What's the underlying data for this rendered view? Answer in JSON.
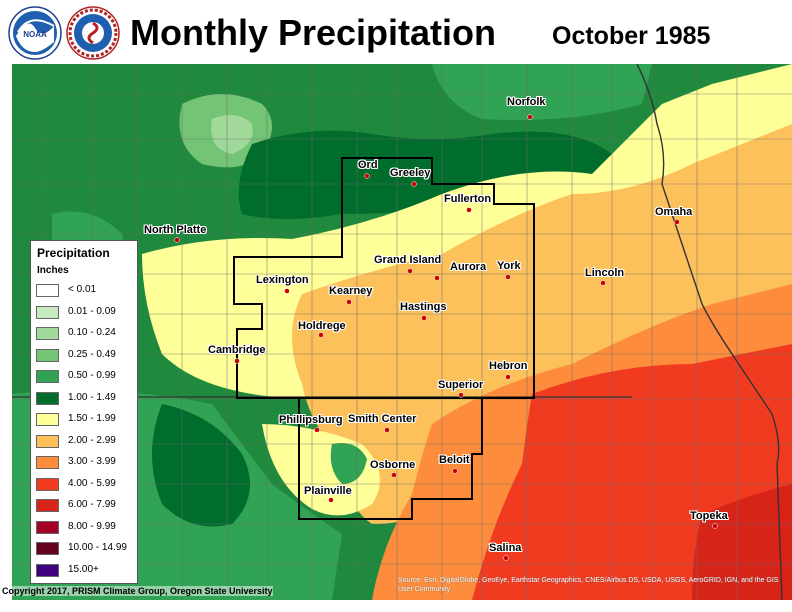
{
  "header": {
    "title": "Monthly Precipitation",
    "subtitle": "October 1985"
  },
  "logos": [
    {
      "icon": "noaa-logo-icon",
      "text": "NOAA"
    },
    {
      "icon": "nws-logo-icon",
      "text": "NATIONAL WEATHER SERVICE"
    }
  ],
  "cities": [
    {
      "name": "Norfolk"
    },
    {
      "name": "Ord"
    },
    {
      "name": "Greeley"
    },
    {
      "name": "Fullerton"
    },
    {
      "name": "North Platte"
    },
    {
      "name": "Omaha"
    },
    {
      "name": "Grand Island"
    },
    {
      "name": "Aurora"
    },
    {
      "name": "York"
    },
    {
      "name": "Lincoln"
    },
    {
      "name": "Lexington"
    },
    {
      "name": "Kearney"
    },
    {
      "name": "Hastings"
    },
    {
      "name": "Holdrege"
    },
    {
      "name": "Cambridge"
    },
    {
      "name": "Hebron"
    },
    {
      "name": "Superior"
    },
    {
      "name": "Phillipsburg"
    },
    {
      "name": "Smith Center"
    },
    {
      "name": "Osborne"
    },
    {
      "name": "Beloit"
    },
    {
      "name": "Plainville"
    },
    {
      "name": "Topeka"
    },
    {
      "name": "Salina"
    }
  ],
  "legend": {
    "title": "Precipitation",
    "units": "Inches",
    "items": [
      {
        "label": "< 0.01",
        "color": "#ffffff"
      },
      {
        "label": "0.01 - 0.09",
        "color": "#c7e9c0"
      },
      {
        "label": "0.10 - 0.24",
        "color": "#a1d99b"
      },
      {
        "label": "0.25 - 0.49",
        "color": "#74c476"
      },
      {
        "label": "0.50 - 0.99",
        "color": "#31a354"
      },
      {
        "label": "1.00 - 1.49",
        "color": "#006d2c"
      },
      {
        "label": "1.50 - 1.99",
        "color": "#ffff99"
      },
      {
        "label": "2.00 - 2.99",
        "color": "#fdc15c"
      },
      {
        "label": "3.00 - 3.99",
        "color": "#fd8d3c"
      },
      {
        "label": "4.00 - 5.99",
        "color": "#f03b20"
      },
      {
        "label": "6.00 - 7.99",
        "color": "#d62418"
      },
      {
        "label": "8.00 - 9.99",
        "color": "#a50026"
      },
      {
        "label": "10.00 - 14.99",
        "color": "#67001f"
      },
      {
        "label": "15.00+",
        "color": "#3f007d"
      }
    ]
  },
  "footer": {
    "copyright": "Copyright 2017, PRISM Climate Group, Oregon State University",
    "source": "Source: Esri, DigitalGlobe, GeoEye, Earthstar Geographics, CNES/Airbus DS, USDA, USGS, AeroGRID, IGN, and the GIS User Community"
  }
}
